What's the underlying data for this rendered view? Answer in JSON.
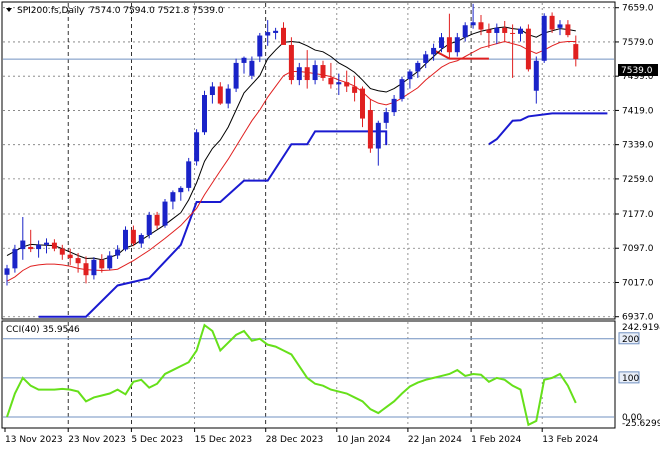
{
  "header": {
    "symbol": "SPI200.fs,Daily",
    "ohlc": "7574.0 7594.0 7521.8 7539.0",
    "indicator_label": "CCI(40) 35.9546"
  },
  "colors": {
    "bull": "#1a23c8",
    "bear": "#e02020",
    "ema_fast": "#000000",
    "ema_slow": "#e02020",
    "stop_line": "#1a1ad0",
    "cci": "#66e01a",
    "grid": "#7a7a7a",
    "level": "#7090c0",
    "current_price_bg": "#000000"
  },
  "chart_data": [
    {
      "type": "candlestick",
      "y_ticks": [
        "7659.0",
        "7579.0",
        "7499.0",
        "7419.0",
        "7339.0",
        "7259.0",
        "7177.0",
        "7097.0",
        "7017.0",
        "6937.0"
      ],
      "ylim": [
        6934,
        7670
      ],
      "current_price_label": "7539.0",
      "current_price": 7539,
      "x_labels": [
        "13 Nov 2023",
        "23 Nov 2023",
        "5 Dec 2023",
        "15 Dec 2023",
        "28 Dec 2023",
        "10 Jan 2024",
        "22 Jan 2024",
        "1 Feb 2024",
        "13 Feb 2024"
      ],
      "candles": [
        [
          7035,
          7058,
          7010,
          7050
        ],
        [
          7050,
          7105,
          7040,
          7095
        ],
        [
          7095,
          7170,
          7070,
          7115
        ],
        [
          7100,
          7140,
          7088,
          7095
        ],
        [
          7095,
          7115,
          7075,
          7105
        ],
        [
          7105,
          7120,
          7085,
          7110
        ],
        [
          7110,
          7118,
          7090,
          7096
        ],
        [
          7096,
          7105,
          7070,
          7082
        ],
        [
          7082,
          7096,
          7058,
          7074
        ],
        [
          7074,
          7086,
          7040,
          7062
        ],
        [
          7062,
          7078,
          7015,
          7034
        ],
        [
          7034,
          7076,
          7024,
          7070
        ],
        [
          7070,
          7083,
          7040,
          7050
        ],
        [
          7050,
          7090,
          7046,
          7080
        ],
        [
          7080,
          7104,
          7072,
          7094
        ],
        [
          7094,
          7148,
          7090,
          7140
        ],
        [
          7140,
          7150,
          7102,
          7108
        ],
        [
          7108,
          7132,
          7098,
          7128
        ],
        [
          7128,
          7182,
          7120,
          7175
        ],
        [
          7175,
          7182,
          7142,
          7150
        ],
        [
          7150,
          7212,
          7145,
          7206
        ],
        [
          7206,
          7232,
          7188,
          7228
        ],
        [
          7228,
          7242,
          7208,
          7238
        ],
        [
          7238,
          7308,
          7230,
          7300
        ],
        [
          7300,
          7375,
          7290,
          7368
        ],
        [
          7368,
          7465,
          7362,
          7455
        ],
        [
          7455,
          7485,
          7435,
          7475
        ],
        [
          7475,
          7485,
          7432,
          7435
        ],
        [
          7435,
          7480,
          7424,
          7470
        ],
        [
          7470,
          7540,
          7462,
          7530
        ],
        [
          7530,
          7545,
          7505,
          7542
        ],
        [
          7500,
          7545,
          7492,
          7535
        ],
        [
          7545,
          7600,
          7532,
          7594
        ],
        [
          7594,
          7630,
          7570,
          7602
        ],
        [
          7600,
          7612,
          7585,
          7605
        ],
        [
          7612,
          7625,
          7578,
          7572
        ],
        [
          7572,
          7590,
          7480,
          7490
        ],
        [
          7490,
          7530,
          7478,
          7520
        ],
        [
          7520,
          7560,
          7470,
          7490
        ],
        [
          7490,
          7536,
          7480,
          7525
        ],
        [
          7525,
          7535,
          7488,
          7495
        ],
        [
          7495,
          7530,
          7470,
          7480
        ],
        [
          7480,
          7505,
          7455,
          7485
        ],
        [
          7485,
          7512,
          7462,
          7475
        ],
        [
          7475,
          7498,
          7440,
          7460
        ],
        [
          7470,
          7475,
          7380,
          7400
        ],
        [
          7420,
          7445,
          7320,
          7330
        ],
        [
          7330,
          7395,
          7290,
          7390
        ],
        [
          7390,
          7425,
          7376,
          7415
        ],
        [
          7415,
          7455,
          7406,
          7446
        ],
        [
          7446,
          7498,
          7440,
          7492
        ],
        [
          7492,
          7515,
          7470,
          7510
        ],
        [
          7510,
          7535,
          7495,
          7530
        ],
        [
          7530,
          7558,
          7518,
          7550
        ],
        [
          7550,
          7575,
          7535,
          7565
        ],
        [
          7565,
          7600,
          7555,
          7590
        ],
        [
          7590,
          7645,
          7540,
          7555
        ],
        [
          7555,
          7600,
          7545,
          7590
        ],
        [
          7590,
          7625,
          7580,
          7618
        ],
        [
          7618,
          7668,
          7610,
          7625
        ],
        [
          7625,
          7642,
          7595,
          7608
        ],
        [
          7608,
          7622,
          7565,
          7600
        ],
        [
          7600,
          7622,
          7574,
          7612
        ],
        [
          7612,
          7628,
          7580,
          7600
        ],
        [
          7600,
          7620,
          7495,
          7598
        ],
        [
          7598,
          7615,
          7580,
          7610
        ],
        [
          7610,
          7620,
          7510,
          7515
        ],
        [
          7465,
          7545,
          7435,
          7535
        ],
        [
          7535,
          7646,
          7530,
          7640
        ],
        [
          7640,
          7648,
          7600,
          7608
        ],
        [
          7612,
          7630,
          7595,
          7620
        ],
        [
          7620,
          7630,
          7590,
          7595
        ],
        [
          7574,
          7594,
          7521.8,
          7539
        ]
      ],
      "ema_fast": [
        7080,
        7090,
        7100,
        7106,
        7105,
        7104,
        7103,
        7096,
        7088,
        7080,
        7073,
        7074,
        7070,
        7076,
        7082,
        7098,
        7104,
        7116,
        7128,
        7140,
        7152,
        7166,
        7180,
        7210,
        7250,
        7300,
        7330,
        7350,
        7380,
        7420,
        7460,
        7480,
        7500,
        7540,
        7560,
        7578,
        7580,
        7578,
        7570,
        7560,
        7556,
        7545,
        7530,
        7520,
        7508,
        7490,
        7470,
        7465,
        7462,
        7470,
        7482,
        7496,
        7510,
        7528,
        7545,
        7562,
        7575,
        7580,
        7590,
        7598,
        7604,
        7608,
        7612,
        7614,
        7610,
        7608,
        7596,
        7590,
        7600,
        7605,
        7610,
        7608,
        7605
      ],
      "ema_slow": [
        7020,
        7030,
        7045,
        7055,
        7058,
        7060,
        7060,
        7058,
        7055,
        7050,
        7047,
        7046,
        7045,
        7046,
        7048,
        7058,
        7068,
        7080,
        7092,
        7106,
        7120,
        7135,
        7150,
        7170,
        7190,
        7222,
        7250,
        7278,
        7305,
        7335,
        7365,
        7395,
        7420,
        7450,
        7475,
        7500,
        7510,
        7510,
        7508,
        7505,
        7502,
        7498,
        7490,
        7484,
        7476,
        7462,
        7445,
        7436,
        7432,
        7438,
        7448,
        7460,
        7472,
        7490,
        7505,
        7520,
        7530,
        7535,
        7545,
        7555,
        7565,
        7570,
        7575,
        7580,
        7575,
        7570,
        7560,
        7552,
        7560,
        7570,
        7578,
        7580,
        7580
      ],
      "stop_segments": [
        [
          [
            4,
            6937
          ],
          [
            10,
            6937
          ],
          [
            14,
            7010
          ],
          [
            18,
            7027
          ],
          [
            22,
            7105
          ],
          [
            24,
            7205
          ],
          [
            27,
            7205
          ],
          [
            30,
            7255
          ],
          [
            33,
            7255
          ],
          [
            36,
            7340
          ],
          [
            38,
            7340
          ],
          [
            39,
            7370
          ],
          [
            48,
            7370
          ],
          [
            48,
            7338
          ]
        ],
        [
          [
            54,
            7560
          ],
          [
            56,
            7540
          ],
          [
            61,
            7540
          ]
        ],
        [
          [
            61,
            7340
          ],
          [
            62,
            7352
          ],
          [
            64,
            7395
          ],
          [
            65,
            7396
          ],
          [
            66,
            7405
          ],
          [
            69,
            7412
          ],
          [
            76,
            7412
          ]
        ]
      ],
      "stop_segment_colors": [
        "stop",
        "bear",
        "stop"
      ]
    },
    {
      "type": "line",
      "title": "CCI(40) 35.9546",
      "y_ticks": [
        "242.9194",
        "200",
        "100",
        "0.00",
        "-25.6299"
      ],
      "ylim": [
        -25.6299,
        242.9194
      ],
      "levels": [
        200,
        100,
        0
      ],
      "values": [
        0,
        60,
        100,
        80,
        70,
        70,
        70,
        72,
        70,
        65,
        40,
        50,
        55,
        60,
        70,
        58,
        90,
        95,
        75,
        85,
        110,
        120,
        130,
        140,
        170,
        235,
        220,
        170,
        190,
        210,
        220,
        195,
        200,
        185,
        180,
        170,
        160,
        130,
        100,
        85,
        80,
        70,
        65,
        60,
        50,
        40,
        20,
        10,
        25,
        40,
        60,
        78,
        88,
        95,
        100,
        105,
        110,
        120,
        105,
        110,
        108,
        90,
        100,
        95,
        80,
        70,
        -20,
        -10,
        95,
        100,
        110,
        80,
        35.9546
      ]
    }
  ]
}
